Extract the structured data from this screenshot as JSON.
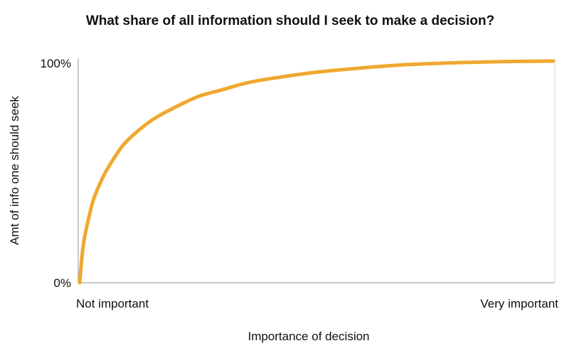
{
  "chart_data": {
    "type": "line",
    "title": "What share of all information should I seek to make a decision?",
    "xlabel": "Importance of decision",
    "ylabel": "Amt of info one should seek",
    "x_tick_labels": [
      "Not important",
      "Very important"
    ],
    "y_tick_labels": [
      "0%",
      "100%"
    ],
    "xlim": [
      0,
      1
    ],
    "ylim": [
      0,
      100
    ],
    "grid": false,
    "legend": "none",
    "series": [
      {
        "color": "#f0a830",
        "x": [
          0,
          0.005,
          0.01,
          0.02,
          0.03,
          0.05,
          0.075,
          0.1,
          0.15,
          0.2,
          0.25,
          0.3,
          0.35,
          0.4,
          0.5,
          0.6,
          0.7,
          0.8,
          0.9,
          1.0
        ],
        "y": [
          0,
          12,
          20,
          30,
          38,
          48,
          57,
          64,
          73,
          79,
          84,
          87,
          90,
          92,
          95,
          97,
          98.5,
          99.3,
          99.8,
          100
        ]
      }
    ]
  }
}
